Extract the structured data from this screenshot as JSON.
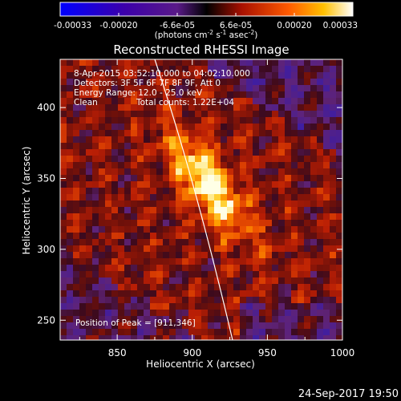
{
  "colorbar": {
    "tick_labels": [
      "-0.00033",
      "-0.00020",
      "-6.6e-05",
      "6.6e-05",
      "0.00020",
      "0.00033"
    ],
    "unit_main": "(photons cm",
    "unit_exp1": "-2",
    "unit_s": " s",
    "unit_exp2": "-1",
    "unit_asec": " asec",
    "unit_exp3": "-2",
    "unit_close": ")"
  },
  "title": "Reconstructed RHESSI Image",
  "info": {
    "time_range": "8-Apr-2015 03:52:10.000 to 04:02:10.000",
    "detectors": "Detectors: 3F 5F 6F 7F 8F 9F, Att 0",
    "energy": "Energy Range: 12.0 - 25.0 keV",
    "algorithm": "Clean",
    "counts": "Total counts: 1.22E+04",
    "peak": "Position of Peak = [911,346]"
  },
  "axes": {
    "xlabel": "Heliocentric X (arcsec)",
    "ylabel": "Heliocentric Y (arcsec)",
    "x_ticks": [
      "850",
      "900",
      "950",
      "1000"
    ],
    "y_ticks": [
      "250",
      "300",
      "350",
      "400"
    ],
    "xlim": [
      812,
      1000
    ],
    "ylim": [
      236,
      434
    ]
  },
  "peak_position": [
    911,
    346
  ],
  "timestamp": "24-Sep-2017 19:50"
}
